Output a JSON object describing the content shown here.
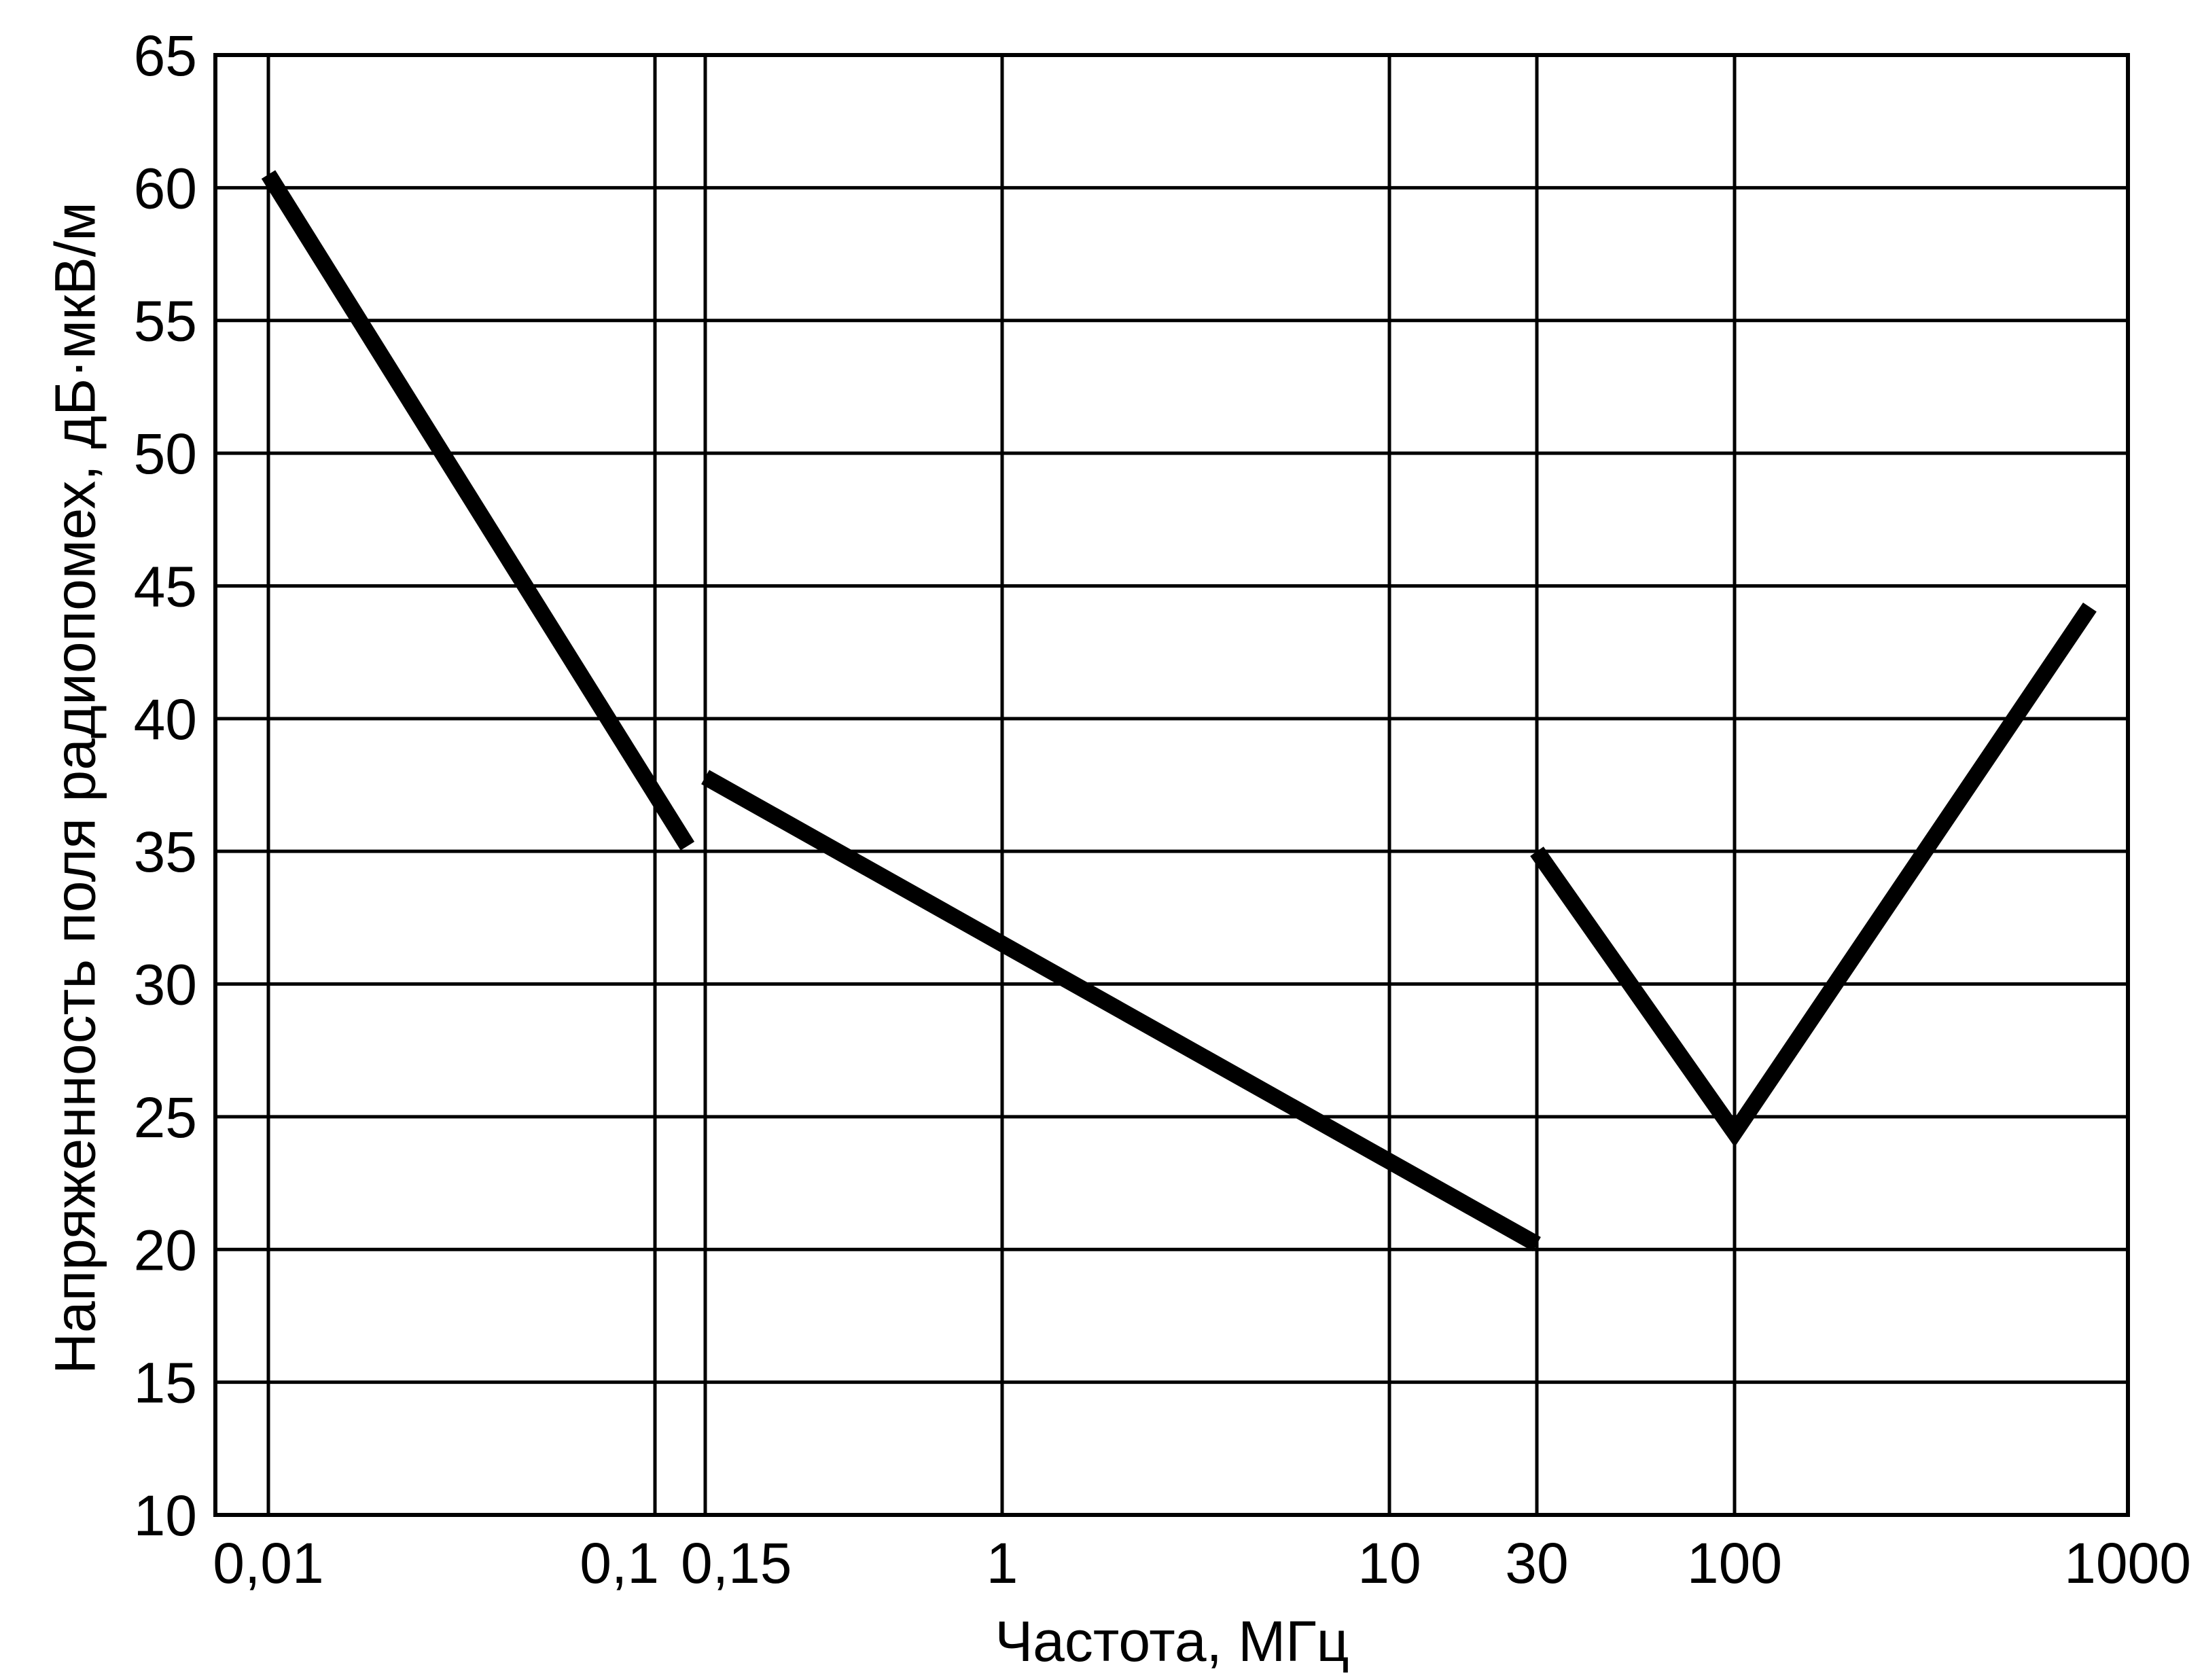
{
  "chart_data": {
    "type": "line",
    "title": "",
    "xlabel": "Частота, МГц",
    "ylabel": "Напряженность поля радиопомех, дБ·мкВ/м",
    "x_scale": "log",
    "ylim": [
      10,
      65
    ],
    "y_ticks": [
      10,
      15,
      20,
      25,
      30,
      35,
      40,
      45,
      50,
      55,
      60,
      65
    ],
    "y_tick_labels": [
      "10",
      "15",
      "20",
      "25",
      "30",
      "35",
      "40",
      "45",
      "50",
      "55",
      "60",
      "65"
    ],
    "x_ticks": [
      0.01,
      0.1,
      0.15,
      1,
      10,
      30,
      100,
      1000
    ],
    "x_tick_labels": [
      "0,01",
      "0,1",
      "0,15",
      "1",
      "10",
      "30",
      "100",
      "1000"
    ],
    "grid": true,
    "series": [
      {
        "points": [
          [
            0.01,
            60.5
          ],
          [
            0.13,
            35.2
          ]
        ]
      },
      {
        "points": [
          [
            0.15,
            37.8
          ],
          [
            30,
            20.2
          ]
        ]
      },
      {
        "points": [
          [
            30,
            35
          ],
          [
            100,
            24.4
          ],
          [
            800,
            44.2
          ]
        ]
      }
    ]
  }
}
